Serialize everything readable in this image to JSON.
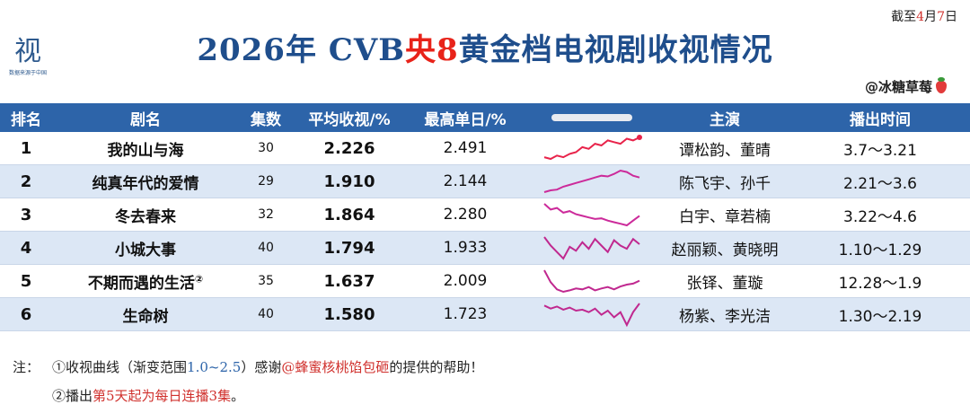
{
  "logo": {
    "glyph": "视",
    "sub": "数据来源于中国"
  },
  "date": {
    "prefix": "截至",
    "month": "4",
    "month_unit": "月",
    "day": "7",
    "day_unit": "日"
  },
  "title": {
    "pre": "2026年 CVB",
    "red": "央8",
    "post": "黄金档电视剧收视情况"
  },
  "author": "@冰糖草莓",
  "headers": {
    "rank": "排名",
    "name": "剧名",
    "eps": "集数",
    "avg": "平均收视/%",
    "peak": "最高单日/%",
    "cast": "主演",
    "dates": "播出时间"
  },
  "rows": [
    {
      "rank": "1",
      "name": "我的山与海",
      "mark": "",
      "eps": "30",
      "avg": "2.226",
      "peak": "2.491",
      "cast": "谭松韵、董晴",
      "dates": "3.7～3.21",
      "trend": [
        1.9,
        1.85,
        1.95,
        1.9,
        2.0,
        2.05,
        2.2,
        2.15,
        2.3,
        2.25,
        2.4,
        2.35,
        2.3,
        2.45,
        2.4,
        2.49
      ]
    },
    {
      "rank": "2",
      "name": "纯真年代的爱情",
      "mark": "",
      "eps": "29",
      "avg": "1.910",
      "peak": "2.144",
      "cast": "陈飞宇、孙千",
      "dates": "2.21～3.6",
      "trend": [
        1.55,
        1.6,
        1.62,
        1.7,
        1.75,
        1.8,
        1.85,
        1.9,
        1.95,
        2.0,
        1.98,
        2.05,
        2.14,
        2.1,
        2.0,
        1.95
      ]
    },
    {
      "rank": "3",
      "name": "冬去春来",
      "mark": "",
      "eps": "32",
      "avg": "1.864",
      "peak": "2.280",
      "cast": "白宇、章若楠",
      "dates": "3.22～4.6",
      "trend": [
        2.28,
        2.1,
        2.15,
        2.0,
        2.05,
        1.95,
        1.9,
        1.85,
        1.8,
        1.82,
        1.75,
        1.7,
        1.65,
        1.6,
        1.75,
        1.9
      ]
    },
    {
      "rank": "4",
      "name": "小城大事",
      "mark": "",
      "eps": "40",
      "avg": "1.794",
      "peak": "1.933",
      "cast": "赵丽颖、黄晓明",
      "dates": "1.10～1.29",
      "trend": [
        1.93,
        1.8,
        1.7,
        1.6,
        1.78,
        1.72,
        1.85,
        1.75,
        1.9,
        1.8,
        1.7,
        1.88,
        1.8,
        1.75,
        1.9,
        1.82
      ]
    },
    {
      "rank": "5",
      "name": "不期而遇的生活",
      "mark": "②",
      "eps": "35",
      "avg": "1.637",
      "peak": "2.009",
      "cast": "张铎、董璇",
      "dates": "12.28～1.9",
      "trend": [
        2.0,
        1.75,
        1.6,
        1.55,
        1.58,
        1.62,
        1.6,
        1.65,
        1.58,
        1.62,
        1.65,
        1.6,
        1.66,
        1.7,
        1.72,
        1.78
      ]
    },
    {
      "rank": "6",
      "name": "生命树",
      "mark": "",
      "eps": "40",
      "avg": "1.580",
      "peak": "1.723",
      "cast": "杨紫、李光洁",
      "dates": "1.30～2.19",
      "trend": [
        1.68,
        1.62,
        1.66,
        1.6,
        1.64,
        1.58,
        1.6,
        1.55,
        1.62,
        1.5,
        1.58,
        1.45,
        1.55,
        1.3,
        1.55,
        1.72
      ]
    }
  ],
  "notes": {
    "label": "注：",
    "line1_a": "①收视曲线（渐变范围",
    "line1_range": "1.0~2.5",
    "line1_b": "）感谢",
    "line1_red": "@蜂蜜核桃馅包砸",
    "line1_c": "的提供的帮助！",
    "line2_a": "②播出",
    "line2_red": "第5天起为每日连播3集",
    "line2_b": "。"
  },
  "colors": {
    "header_bg": "#2d64a9",
    "title_blue": "#1f4e8c",
    "accent_red": "#e8231a",
    "row_alt": "#dce7f5"
  }
}
